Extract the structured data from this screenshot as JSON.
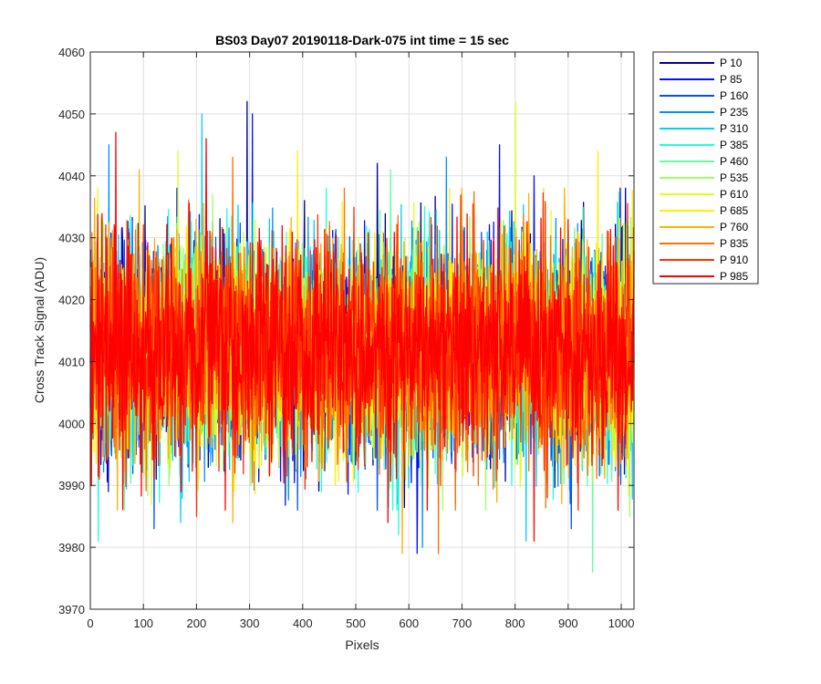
{
  "chart_data": {
    "type": "line",
    "title": "BS03 Day07 20190118-Dark-075 int time = 15 sec",
    "xlabel": "Pixels",
    "ylabel": "Cross Track Signal (ADU)",
    "xlim": [
      0,
      1024
    ],
    "ylim": [
      3970,
      4060
    ],
    "xticks": [
      0,
      100,
      200,
      300,
      400,
      500,
      600,
      700,
      800,
      900,
      1000
    ],
    "yticks": [
      3970,
      3980,
      3990,
      4000,
      4010,
      4020,
      4030,
      4040,
      4050,
      4060
    ],
    "grid": true,
    "legend_position": "outside-right",
    "n_points": 1024,
    "baseline": 4012,
    "series": [
      {
        "name": "P 10",
        "color": "#00008f",
        "seed": 11,
        "spikes": [
          [
            295,
            4052
          ],
          [
            403,
            4036
          ],
          [
            540,
            4042
          ]
        ]
      },
      {
        "name": "P 85",
        "color": "#0010ff",
        "seed": 23,
        "spikes": [
          [
            305,
            4050
          ],
          [
            615,
            3979
          ],
          [
            770,
            4045
          ],
          [
            835,
            4040
          ]
        ]
      },
      {
        "name": "P 160",
        "color": "#0050ff",
        "seed": 37,
        "spikes": [
          [
            120,
            3983
          ],
          [
            540,
            3986
          ],
          [
            905,
            3983
          ]
        ]
      },
      {
        "name": "P 235",
        "color": "#0090ff",
        "seed": 41,
        "spikes": [
          [
            35,
            4045
          ],
          [
            625,
            3980
          ],
          [
            670,
            4043
          ]
        ]
      },
      {
        "name": "P 310",
        "color": "#00d0ff",
        "seed": 53,
        "spikes": [
          [
            210,
            4050
          ],
          [
            170,
            3984
          ],
          [
            820,
            3981
          ]
        ]
      },
      {
        "name": "P 385",
        "color": "#20ffdf",
        "seed": 67,
        "spikes": [
          [
            15,
            3981
          ],
          [
            580,
            3982
          ]
        ]
      },
      {
        "name": "P 460",
        "color": "#60ff9f",
        "seed": 79,
        "spikes": [
          [
            565,
            4041
          ],
          [
            945,
            3976
          ]
        ]
      },
      {
        "name": "P 535",
        "color": "#9fff60",
        "seed": 83,
        "spikes": [
          [
            230,
            4037
          ],
          [
            1015,
            3985
          ]
        ]
      },
      {
        "name": "P 610",
        "color": "#dfff20",
        "seed": 97,
        "spikes": [
          [
            165,
            4044
          ],
          [
            800,
            4052
          ]
        ]
      },
      {
        "name": "P 685",
        "color": "#ffef00",
        "seed": 101,
        "spikes": [
          [
            390,
            4044
          ],
          [
            955,
            4044
          ]
        ]
      },
      {
        "name": "P 760",
        "color": "#ffb000",
        "seed": 113,
        "spikes": [
          [
            92,
            4041
          ],
          [
            587,
            3979
          ],
          [
            268,
            3984
          ]
        ]
      },
      {
        "name": "P 835",
        "color": "#ff7000",
        "seed": 127,
        "spikes": [
          [
            268,
            4043
          ],
          [
            655,
            3979
          ],
          [
            730,
            3990
          ]
        ]
      },
      {
        "name": "P 910",
        "color": "#ff3000",
        "seed": 131,
        "spikes": [
          [
            200,
            3985
          ],
          [
            860,
            3988
          ]
        ]
      },
      {
        "name": "P 985",
        "color": "#ff0000",
        "seed": 139,
        "spikes": [
          [
            48,
            4047
          ],
          [
            218,
            4046
          ],
          [
            560,
            3984
          ],
          [
            835,
            3981
          ]
        ]
      }
    ]
  }
}
